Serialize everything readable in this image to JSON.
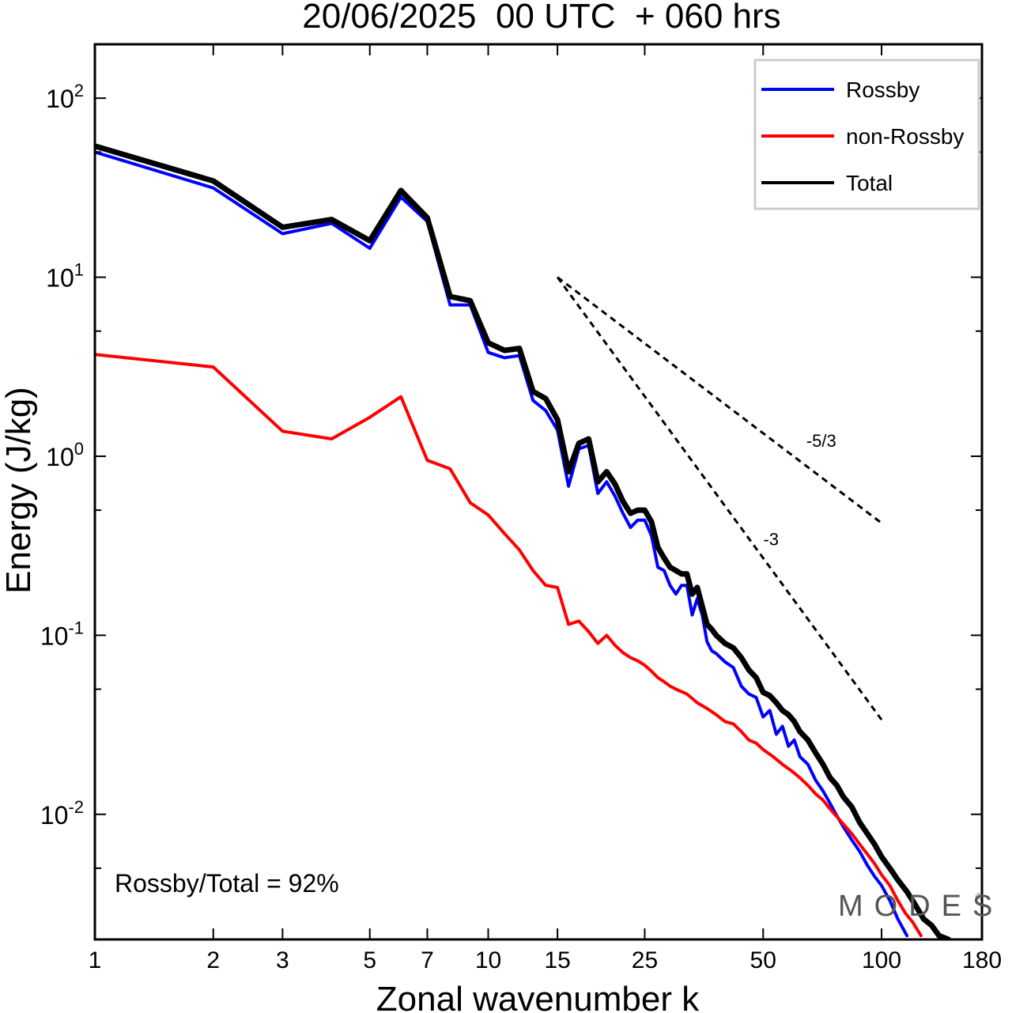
{
  "chart_data": {
    "type": "line",
    "title": "20/06/2025  00 UTC  + 060 hrs",
    "xlabel": "Zonal wavenumber k",
    "ylabel": "Energy (J/kg)",
    "xscale": "log",
    "yscale": "log",
    "xlim": [
      1,
      180
    ],
    "ylim": [
      0.002,
      200
    ],
    "x_ticks": [
      1,
      2,
      3,
      5,
      7,
      10,
      15,
      25,
      50,
      100,
      180
    ],
    "y_ticks": [
      {
        "base": "10",
        "exp": "2",
        "value": 100
      },
      {
        "base": "10",
        "exp": "1",
        "value": 10
      },
      {
        "base": "10",
        "exp": "0",
        "value": 1
      },
      {
        "base": "10",
        "exp": "-1",
        "value": 0.1
      },
      {
        "base": "10",
        "exp": "-2",
        "value": 0.01
      }
    ],
    "legend_position": "top-right",
    "annotation": "Rossby/Total = 92%",
    "watermark": "MODES",
    "reference_slopes": [
      {
        "label": "-5/3",
        "slope": -1.6667,
        "x_start": 15,
        "y_start": 10,
        "x_end": 100
      },
      {
        "label": "-3",
        "slope": -3,
        "x_start": 15,
        "y_start": 10,
        "x_end": 100
      }
    ],
    "series": [
      {
        "name": "Rossby",
        "color": "#0000ff",
        "width": 4,
        "points": [
          [
            1,
            50
          ],
          [
            2,
            31.5
          ],
          [
            3,
            17.5
          ],
          [
            4,
            20
          ],
          [
            5,
            14.5
          ],
          [
            6,
            28
          ],
          [
            7,
            20.5
          ],
          [
            8,
            7
          ],
          [
            9,
            7
          ],
          [
            10,
            3.8
          ],
          [
            11,
            3.55
          ],
          [
            12,
            3.65
          ],
          [
            13,
            2.05
          ],
          [
            14,
            1.8
          ],
          [
            15,
            1.4
          ],
          [
            16,
            0.68
          ],
          [
            17,
            1.1
          ],
          [
            18,
            1.15
          ],
          [
            19,
            0.62
          ],
          [
            20,
            0.72
          ],
          [
            21,
            0.6
          ],
          [
            22,
            0.48
          ],
          [
            23,
            0.4
          ],
          [
            24,
            0.44
          ],
          [
            25,
            0.44
          ],
          [
            26,
            0.36
          ],
          [
            27,
            0.24
          ],
          [
            28,
            0.23
          ],
          [
            29,
            0.19
          ],
          [
            30,
            0.17
          ],
          [
            31,
            0.19
          ],
          [
            32,
            0.19
          ],
          [
            33,
            0.13
          ],
          [
            34,
            0.16
          ],
          [
            35,
            0.13
          ],
          [
            36,
            0.092
          ],
          [
            37,
            0.082
          ],
          [
            38,
            0.079
          ],
          [
            40,
            0.071
          ],
          [
            42,
            0.066
          ],
          [
            44,
            0.052
          ],
          [
            46,
            0.047
          ],
          [
            48,
            0.045
          ],
          [
            50,
            0.035
          ],
          [
            52,
            0.038
          ],
          [
            54,
            0.028
          ],
          [
            56,
            0.031
          ],
          [
            58,
            0.024
          ],
          [
            60,
            0.026
          ],
          [
            62,
            0.021
          ],
          [
            65,
            0.019
          ],
          [
            68,
            0.0155
          ],
          [
            71,
            0.0135
          ],
          [
            74,
            0.0115
          ],
          [
            77,
            0.0098
          ],
          [
            80,
            0.0085
          ],
          [
            84,
            0.0072
          ],
          [
            88,
            0.0062
          ],
          [
            92,
            0.0052
          ],
          [
            96,
            0.0045
          ],
          [
            100,
            0.004
          ],
          [
            105,
            0.0033
          ],
          [
            110,
            0.0026
          ],
          [
            116,
            0.0021
          ]
        ]
      },
      {
        "name": "non-Rossby",
        "color": "#ff0000",
        "width": 4,
        "points": [
          [
            1,
            3.7
          ],
          [
            2,
            3.15
          ],
          [
            3,
            1.38
          ],
          [
            4,
            1.25
          ],
          [
            5,
            1.65
          ],
          [
            6,
            2.15
          ],
          [
            7,
            0.95
          ],
          [
            8,
            0.85
          ],
          [
            9,
            0.55
          ],
          [
            10,
            0.47
          ],
          [
            11,
            0.37
          ],
          [
            12,
            0.3
          ],
          [
            13,
            0.23
          ],
          [
            14,
            0.19
          ],
          [
            15,
            0.185
          ],
          [
            16,
            0.115
          ],
          [
            17,
            0.12
          ],
          [
            18,
            0.105
          ],
          [
            19,
            0.09
          ],
          [
            20,
            0.1
          ],
          [
            21,
            0.088
          ],
          [
            22,
            0.08
          ],
          [
            23,
            0.075
          ],
          [
            24,
            0.072
          ],
          [
            25,
            0.068
          ],
          [
            26,
            0.063
          ],
          [
            27,
            0.058
          ],
          [
            28,
            0.055
          ],
          [
            29,
            0.052
          ],
          [
            30,
            0.05
          ],
          [
            32,
            0.047
          ],
          [
            34,
            0.042
          ],
          [
            36,
            0.039
          ],
          [
            38,
            0.036
          ],
          [
            40,
            0.033
          ],
          [
            42,
            0.032
          ],
          [
            44,
            0.029
          ],
          [
            46,
            0.026
          ],
          [
            48,
            0.025
          ],
          [
            50,
            0.023
          ],
          [
            53,
            0.021
          ],
          [
            56,
            0.019
          ],
          [
            59,
            0.0175
          ],
          [
            62,
            0.016
          ],
          [
            65,
            0.0145
          ],
          [
            68,
            0.013
          ],
          [
            71,
            0.012
          ],
          [
            74,
            0.0107
          ],
          [
            77,
            0.0097
          ],
          [
            80,
            0.0088
          ],
          [
            84,
            0.0078
          ],
          [
            88,
            0.0068
          ],
          [
            92,
            0.006
          ],
          [
            96,
            0.0053
          ],
          [
            100,
            0.0046
          ],
          [
            105,
            0.004
          ],
          [
            110,
            0.0033
          ],
          [
            115,
            0.0028
          ],
          [
            120,
            0.0025
          ],
          [
            126,
            0.0021
          ]
        ]
      },
      {
        "name": "Total",
        "color": "#000000",
        "width": 7,
        "points": [
          [
            1,
            54
          ],
          [
            2,
            34.5
          ],
          [
            3,
            19
          ],
          [
            4,
            21
          ],
          [
            5,
            16
          ],
          [
            6,
            30.5
          ],
          [
            7,
            21.5
          ],
          [
            8,
            7.8
          ],
          [
            9,
            7.4
          ],
          [
            10,
            4.3
          ],
          [
            11,
            3.9
          ],
          [
            12,
            4
          ],
          [
            13,
            2.3
          ],
          [
            14,
            2.1
          ],
          [
            15,
            1.6
          ],
          [
            16,
            0.82
          ],
          [
            17,
            1.18
          ],
          [
            18,
            1.25
          ],
          [
            19,
            0.72
          ],
          [
            20,
            0.82
          ],
          [
            21,
            0.7
          ],
          [
            22,
            0.56
          ],
          [
            23,
            0.48
          ],
          [
            24,
            0.5
          ],
          [
            25,
            0.5
          ],
          [
            26,
            0.43
          ],
          [
            27,
            0.31
          ],
          [
            28,
            0.27
          ],
          [
            29,
            0.24
          ],
          [
            30,
            0.23
          ],
          [
            31,
            0.22
          ],
          [
            32,
            0.22
          ],
          [
            33,
            0.17
          ],
          [
            34,
            0.185
          ],
          [
            35,
            0.145
          ],
          [
            36,
            0.115
          ],
          [
            37,
            0.108
          ],
          [
            38,
            0.1
          ],
          [
            40,
            0.09
          ],
          [
            42,
            0.085
          ],
          [
            44,
            0.075
          ],
          [
            46,
            0.064
          ],
          [
            48,
            0.058
          ],
          [
            50,
            0.048
          ],
          [
            52,
            0.046
          ],
          [
            54,
            0.042
          ],
          [
            56,
            0.038
          ],
          [
            58,
            0.036
          ],
          [
            60,
            0.033
          ],
          [
            62,
            0.029
          ],
          [
            65,
            0.026
          ],
          [
            68,
            0.022
          ],
          [
            71,
            0.019
          ],
          [
            74,
            0.016
          ],
          [
            77,
            0.0145
          ],
          [
            80,
            0.0125
          ],
          [
            84,
            0.011
          ],
          [
            88,
            0.009
          ],
          [
            92,
            0.0078
          ],
          [
            96,
            0.0068
          ],
          [
            100,
            0.0058
          ],
          [
            105,
            0.005
          ],
          [
            110,
            0.0043
          ],
          [
            116,
            0.0037
          ],
          [
            122,
            0.0031
          ],
          [
            128,
            0.0026
          ],
          [
            134,
            0.0024
          ],
          [
            140,
            0.0021
          ],
          [
            148,
            0.002
          ]
        ]
      }
    ]
  }
}
